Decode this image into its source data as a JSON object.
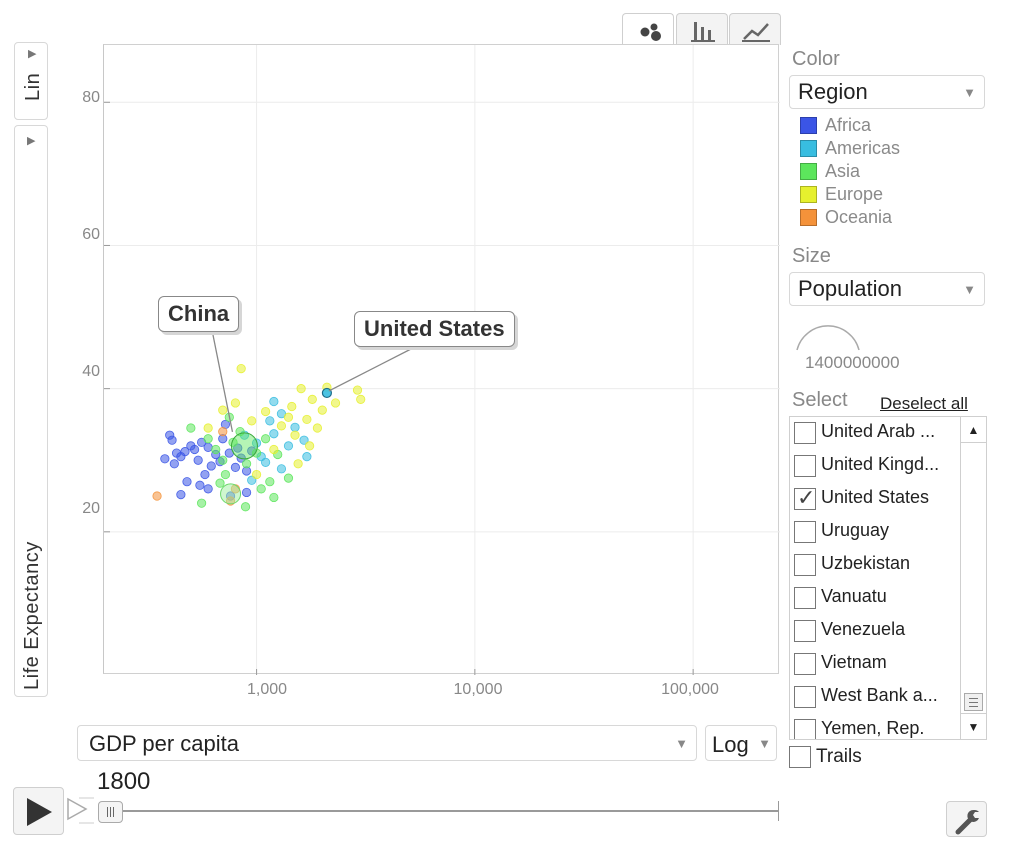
{
  "y_axis": {
    "scale_label": "Lin",
    "label": "Life Expectancy",
    "ticks": [
      "80",
      "60",
      "40",
      "20"
    ]
  },
  "x_axis": {
    "selector_value": "GDP per capita",
    "scale_label": "Log",
    "ticks": [
      "1,000",
      "10,000",
      "100,000"
    ]
  },
  "tabs": [
    {
      "name": "bubble-chart-icon",
      "active": true
    },
    {
      "name": "bar-chart-icon",
      "active": false
    },
    {
      "name": "line-chart-icon",
      "active": false
    }
  ],
  "callouts": {
    "china": "China",
    "us": "United States"
  },
  "panel": {
    "color_label": "Color",
    "color_value": "Region",
    "legend": [
      {
        "label": "Africa",
        "color": "#3b55e6"
      },
      {
        "label": "Americas",
        "color": "#38bde0"
      },
      {
        "label": "Asia",
        "color": "#5ce65c"
      },
      {
        "label": "Europe",
        "color": "#e6f02e"
      },
      {
        "label": "Oceania",
        "color": "#f4923a"
      }
    ],
    "size_label": "Size",
    "size_value": "Population",
    "size_scale_value": "1400000000",
    "select_label": "Select",
    "deselect_all": "Deselect all",
    "countries": [
      {
        "label": "United Arab ...",
        "checked": false
      },
      {
        "label": "United Kingd...",
        "checked": false
      },
      {
        "label": "United States",
        "checked": true
      },
      {
        "label": "Uruguay",
        "checked": false
      },
      {
        "label": "Uzbekistan",
        "checked": false
      },
      {
        "label": "Vanuatu",
        "checked": false
      },
      {
        "label": "Venezuela",
        "checked": false
      },
      {
        "label": "Vietnam",
        "checked": false
      },
      {
        "label": "West Bank a...",
        "checked": false
      },
      {
        "label": "Yemen, Rep.",
        "checked": false
      }
    ],
    "trails_label": "Trails"
  },
  "time": {
    "year": "1800",
    "progress": 0
  },
  "chart_data": {
    "type": "scatter",
    "xlabel": "GDP per capita",
    "ylabel": "Life Expectancy",
    "x_scale": "log",
    "xlim": [
      200,
      250000
    ],
    "ylim": [
      0,
      88
    ],
    "grid": true,
    "legend_placement": "right",
    "highlighted": [
      {
        "name": "China",
        "x": 880,
        "y": 32
      },
      {
        "name": "United States",
        "x": 2100,
        "y": 39.4
      }
    ],
    "points": [
      {
        "x": 400,
        "y": 33.5,
        "r": "Africa"
      },
      {
        "x": 410,
        "y": 32.8,
        "r": "Africa"
      },
      {
        "x": 430,
        "y": 31,
        "r": "Africa"
      },
      {
        "x": 380,
        "y": 30.2,
        "r": "Africa"
      },
      {
        "x": 420,
        "y": 29.5,
        "r": "Africa"
      },
      {
        "x": 450,
        "y": 30.5,
        "r": "Africa"
      },
      {
        "x": 470,
        "y": 31.2,
        "r": "Africa"
      },
      {
        "x": 500,
        "y": 32,
        "r": "Africa"
      },
      {
        "x": 520,
        "y": 31.5,
        "r": "Africa"
      },
      {
        "x": 540,
        "y": 30,
        "r": "Africa"
      },
      {
        "x": 560,
        "y": 32.5,
        "r": "Africa"
      },
      {
        "x": 600,
        "y": 31.8,
        "r": "Africa"
      },
      {
        "x": 620,
        "y": 29.2,
        "r": "Africa"
      },
      {
        "x": 650,
        "y": 30.8,
        "r": "Africa"
      },
      {
        "x": 700,
        "y": 33,
        "r": "Africa"
      },
      {
        "x": 750,
        "y": 31,
        "r": "Africa"
      },
      {
        "x": 800,
        "y": 29,
        "r": "Africa"
      },
      {
        "x": 850,
        "y": 30.3,
        "r": "Africa"
      },
      {
        "x": 900,
        "y": 28.5,
        "r": "Africa"
      },
      {
        "x": 950,
        "y": 31.3,
        "r": "Africa"
      },
      {
        "x": 480,
        "y": 27,
        "r": "Africa"
      },
      {
        "x": 550,
        "y": 26.5,
        "r": "Africa"
      },
      {
        "x": 600,
        "y": 26,
        "r": "Africa"
      },
      {
        "x": 900,
        "y": 25.5,
        "r": "Africa"
      },
      {
        "x": 760,
        "y": 25,
        "r": "Africa"
      },
      {
        "x": 450,
        "y": 25.2,
        "r": "Africa"
      },
      {
        "x": 680,
        "y": 29.8,
        "r": "Africa"
      },
      {
        "x": 820,
        "y": 31.7,
        "r": "Africa"
      },
      {
        "x": 720,
        "y": 35,
        "r": "Africa"
      },
      {
        "x": 580,
        "y": 28,
        "r": "Africa"
      },
      {
        "x": 1000,
        "y": 32.4,
        "r": "Americas"
      },
      {
        "x": 1050,
        "y": 30.5,
        "r": "Americas"
      },
      {
        "x": 1100,
        "y": 29.7,
        "r": "Americas"
      },
      {
        "x": 1200,
        "y": 33.7,
        "r": "Americas"
      },
      {
        "x": 1300,
        "y": 28.8,
        "r": "Americas"
      },
      {
        "x": 1400,
        "y": 32,
        "r": "Americas"
      },
      {
        "x": 1500,
        "y": 34.6,
        "r": "Americas"
      },
      {
        "x": 1200,
        "y": 38.2,
        "r": "Americas"
      },
      {
        "x": 950,
        "y": 27.2,
        "r": "Americas"
      },
      {
        "x": 1650,
        "y": 32.8,
        "r": "Americas"
      },
      {
        "x": 1150,
        "y": 35.5,
        "r": "Americas"
      },
      {
        "x": 880,
        "y": 33.5,
        "r": "Americas"
      },
      {
        "x": 1300,
        "y": 36.5,
        "r": "Americas"
      },
      {
        "x": 1700,
        "y": 30.5,
        "r": "Americas"
      },
      {
        "x": 600,
        "y": 33,
        "r": "Asia"
      },
      {
        "x": 650,
        "y": 31.5,
        "r": "Asia"
      },
      {
        "x": 700,
        "y": 30,
        "r": "Asia"
      },
      {
        "x": 720,
        "y": 28,
        "r": "Asia"
      },
      {
        "x": 780,
        "y": 32.5,
        "r": "Asia"
      },
      {
        "x": 840,
        "y": 34,
        "r": "Asia"
      },
      {
        "x": 900,
        "y": 29.5,
        "r": "Asia"
      },
      {
        "x": 1000,
        "y": 31,
        "r": "Asia"
      },
      {
        "x": 1100,
        "y": 33,
        "r": "Asia"
      },
      {
        "x": 1150,
        "y": 27,
        "r": "Asia"
      },
      {
        "x": 1250,
        "y": 30.8,
        "r": "Asia"
      },
      {
        "x": 1400,
        "y": 27.5,
        "r": "Asia"
      },
      {
        "x": 560,
        "y": 24,
        "r": "Asia"
      },
      {
        "x": 890,
        "y": 23.5,
        "r": "Asia"
      },
      {
        "x": 750,
        "y": 36,
        "r": "Asia"
      },
      {
        "x": 1050,
        "y": 26,
        "r": "Asia"
      },
      {
        "x": 500,
        "y": 34.5,
        "r": "Asia"
      },
      {
        "x": 680,
        "y": 26.8,
        "r": "Asia"
      },
      {
        "x": 1200,
        "y": 24.8,
        "r": "Asia"
      },
      {
        "x": 850,
        "y": 42.8,
        "r": "Europe"
      },
      {
        "x": 1600,
        "y": 40,
        "r": "Europe"
      },
      {
        "x": 1800,
        "y": 38.5,
        "r": "Europe"
      },
      {
        "x": 2000,
        "y": 37,
        "r": "Europe"
      },
      {
        "x": 2300,
        "y": 38,
        "r": "Europe"
      },
      {
        "x": 2900,
        "y": 39.8,
        "r": "Europe"
      },
      {
        "x": 3000,
        "y": 38.5,
        "r": "Europe"
      },
      {
        "x": 1400,
        "y": 36,
        "r": "Europe"
      },
      {
        "x": 1500,
        "y": 33.5,
        "r": "Europe"
      },
      {
        "x": 1700,
        "y": 35.7,
        "r": "Europe"
      },
      {
        "x": 1900,
        "y": 34.5,
        "r": "Europe"
      },
      {
        "x": 1750,
        "y": 32,
        "r": "Europe"
      },
      {
        "x": 1300,
        "y": 34.8,
        "r": "Europe"
      },
      {
        "x": 1100,
        "y": 36.8,
        "r": "Europe"
      },
      {
        "x": 1200,
        "y": 31.5,
        "r": "Europe"
      },
      {
        "x": 1550,
        "y": 29.5,
        "r": "Europe"
      },
      {
        "x": 600,
        "y": 34.5,
        "r": "Europe"
      },
      {
        "x": 800,
        "y": 38,
        "r": "Europe"
      },
      {
        "x": 1450,
        "y": 37.5,
        "r": "Europe"
      },
      {
        "x": 2100,
        "y": 40.2,
        "r": "Europe"
      },
      {
        "x": 1000,
        "y": 28,
        "r": "Europe"
      },
      {
        "x": 700,
        "y": 37,
        "r": "Europe"
      },
      {
        "x": 950,
        "y": 35.5,
        "r": "Europe"
      },
      {
        "x": 350,
        "y": 25,
        "r": "Oceania"
      },
      {
        "x": 760,
        "y": 24.3,
        "r": "Oceania"
      },
      {
        "x": 800,
        "y": 26,
        "r": "Oceania"
      },
      {
        "x": 700,
        "y": 34,
        "r": "Oceania"
      }
    ]
  }
}
